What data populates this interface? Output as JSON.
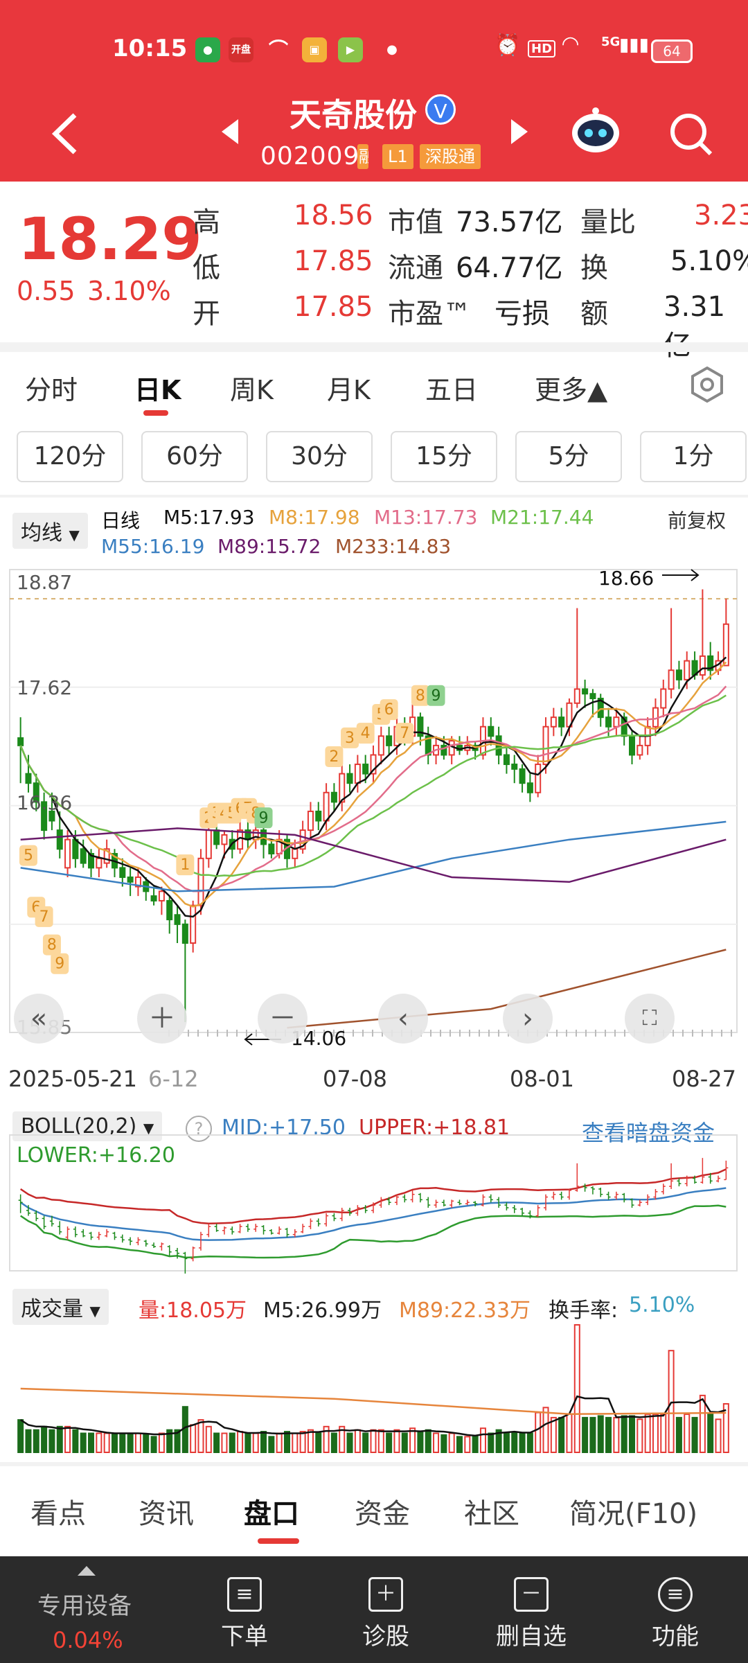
{
  "status": {
    "time": "10:15",
    "battery": "64",
    "app_badge": "开盘",
    "network": "5G",
    "hd": "HD"
  },
  "header": {
    "name": "天奇股份",
    "verify": "V",
    "code": "002009",
    "tags": [
      "L1",
      "深股通"
    ]
  },
  "quote": {
    "price": "18.29",
    "change": "0.55",
    "change_pct": "3.10%",
    "rows": [
      {
        "l1": "高",
        "v1": "18.56",
        "l2": "市值",
        "v2": "73.57亿",
        "l3": "量比",
        "v3": "3.23"
      },
      {
        "l1": "低",
        "v1": "17.85",
        "l2": "流通",
        "v2": "64.77亿",
        "l3": "换",
        "v3": "5.10%"
      },
      {
        "l1": "开",
        "v1": "17.85",
        "l2": "市盈™",
        "v2": "亏损",
        "l3": "额",
        "v3": "3.31亿"
      }
    ]
  },
  "tabs": [
    "分时",
    "日K",
    "周K",
    "月K",
    "五日",
    "更多▲"
  ],
  "intervals": [
    "120分",
    "60分",
    "30分",
    "15分",
    "5分",
    "1分"
  ],
  "ma_legend": {
    "selector": "均线",
    "kind": "日线",
    "items": [
      {
        "text": "M5:17.93",
        "color": "#111111"
      },
      {
        "text": "M8:17.98",
        "color": "#e6a23c"
      },
      {
        "text": "M13:17.73",
        "color": "#e26c8a"
      },
      {
        "text": "M21:17.44",
        "color": "#6cc04a"
      },
      {
        "text": "M55:16.19",
        "color": "#3a7fc1"
      },
      {
        "text": "M89:15.72",
        "color": "#6a1b6a"
      },
      {
        "text": "M233:14.83",
        "color": "#a0522d"
      }
    ],
    "adjust": "前复权"
  },
  "chart_data": [
    {
      "type": "candlestick",
      "y_ticks": [
        "18.87",
        "17.62",
        "16.36",
        "15.85"
      ],
      "ylim": [
        13.95,
        18.87
      ],
      "x_ticks": [
        "2025-05-21",
        "6-12",
        "07-08",
        "08-01",
        "08-27"
      ],
      "annotations": {
        "high": "18.66",
        "low": "14.06"
      },
      "td_marks": [
        "2",
        "3",
        "4",
        "5",
        "6",
        "7",
        "8",
        "9",
        "1",
        "2",
        "3",
        "4",
        "5",
        "6",
        "7",
        "8",
        "9",
        "5",
        "6",
        "7",
        "8",
        "9"
      ],
      "candles": [
        [
          17.08,
          17.0,
          17.3,
          16.6
        ],
        [
          16.7,
          16.6,
          16.9,
          16.5
        ],
        [
          16.6,
          16.4,
          16.7,
          16.3
        ],
        [
          16.4,
          16.1,
          16.5,
          16.0
        ],
        [
          16.3,
          16.2,
          16.5,
          16.1
        ],
        [
          16.1,
          15.9,
          16.3,
          15.8
        ],
        [
          15.7,
          16.0,
          16.1,
          15.6
        ],
        [
          16.0,
          15.8,
          16.1,
          15.7
        ],
        [
          15.9,
          15.75,
          16.0,
          15.7
        ],
        [
          15.85,
          15.7,
          15.9,
          15.6
        ],
        [
          15.7,
          15.8,
          15.9,
          15.6
        ],
        [
          15.75,
          15.9,
          16.0,
          15.7
        ],
        [
          15.85,
          15.7,
          15.9,
          15.6
        ],
        [
          15.7,
          15.6,
          15.8,
          15.5
        ],
        [
          15.6,
          15.55,
          15.7,
          15.4
        ],
        [
          15.5,
          15.6,
          15.7,
          15.4
        ],
        [
          15.55,
          15.45,
          15.6,
          15.35
        ],
        [
          15.4,
          15.35,
          15.5,
          15.3
        ],
        [
          15.35,
          15.45,
          15.5,
          15.2
        ],
        [
          15.35,
          15.15,
          15.4,
          15.0
        ],
        [
          15.2,
          15.1,
          15.3,
          14.9
        ],
        [
          15.1,
          14.9,
          15.15,
          14.06
        ],
        [
          14.9,
          15.3,
          15.35,
          14.8
        ],
        [
          15.3,
          15.8,
          15.9,
          15.2
        ],
        [
          15.8,
          16.1,
          16.2,
          15.7
        ],
        [
          16.1,
          15.95,
          16.2,
          15.9
        ],
        [
          15.95,
          16.05,
          16.1,
          15.8
        ],
        [
          16.0,
          15.9,
          16.1,
          15.8
        ],
        [
          15.9,
          16.1,
          16.2,
          15.85
        ],
        [
          16.1,
          16.0,
          16.2,
          15.9
        ],
        [
          16.0,
          16.1,
          16.2,
          15.9
        ],
        [
          16.1,
          15.95,
          16.15,
          15.8
        ],
        [
          15.95,
          15.85,
          16.0,
          15.8
        ],
        [
          15.85,
          16.0,
          16.1,
          15.8
        ],
        [
          16.0,
          15.8,
          16.05,
          15.7
        ],
        [
          15.8,
          15.9,
          16.0,
          15.7
        ],
        [
          15.9,
          16.1,
          16.2,
          15.85
        ],
        [
          16.1,
          16.3,
          16.4,
          16.0
        ],
        [
          16.3,
          16.2,
          16.4,
          16.1
        ],
        [
          16.2,
          16.5,
          16.6,
          16.1
        ],
        [
          16.5,
          16.4,
          16.6,
          16.3
        ],
        [
          16.4,
          16.7,
          16.8,
          16.3
        ],
        [
          16.7,
          16.6,
          16.8,
          16.5
        ],
        [
          16.6,
          16.8,
          16.9,
          16.5
        ],
        [
          16.8,
          16.7,
          16.9,
          16.6
        ],
        [
          16.7,
          16.9,
          17.0,
          16.6
        ],
        [
          16.9,
          17.1,
          17.2,
          16.8
        ],
        [
          17.1,
          17.0,
          17.2,
          16.9
        ],
        [
          17.0,
          17.2,
          17.3,
          16.9
        ],
        [
          17.2,
          17.1,
          17.3,
          17.0
        ],
        [
          17.1,
          17.3,
          17.45,
          17.0
        ],
        [
          17.3,
          17.1,
          17.35,
          17.0
        ],
        [
          17.1,
          16.9,
          17.2,
          16.8
        ],
        [
          16.9,
          17.0,
          17.1,
          16.8
        ],
        [
          17.0,
          16.9,
          17.1,
          16.85
        ],
        [
          16.9,
          17.05,
          17.1,
          16.8
        ],
        [
          17.0,
          16.95,
          17.1,
          16.9
        ],
        [
          16.95,
          17.0,
          17.1,
          16.9
        ],
        [
          17.0,
          16.95,
          17.05,
          16.85
        ],
        [
          16.9,
          17.2,
          17.3,
          16.85
        ],
        [
          17.2,
          17.1,
          17.3,
          17.0
        ],
        [
          17.1,
          16.9,
          17.2,
          16.8
        ],
        [
          16.9,
          16.8,
          17.0,
          16.7
        ],
        [
          16.8,
          16.75,
          16.9,
          16.6
        ],
        [
          16.75,
          16.6,
          16.8,
          16.5
        ],
        [
          16.6,
          16.5,
          16.7,
          16.4
        ],
        [
          16.5,
          16.8,
          16.9,
          16.45
        ],
        [
          16.8,
          17.2,
          17.3,
          16.7
        ],
        [
          17.2,
          17.3,
          17.4,
          17.1
        ],
        [
          17.3,
          17.2,
          17.4,
          17.1
        ],
        [
          17.2,
          17.45,
          17.5,
          17.1
        ],
        [
          17.45,
          17.6,
          18.46,
          17.4
        ],
        [
          17.6,
          17.55,
          17.7,
          17.4
        ],
        [
          17.55,
          17.5,
          17.6,
          17.3
        ],
        [
          17.5,
          17.3,
          17.55,
          17.2
        ],
        [
          17.3,
          17.2,
          17.4,
          17.1
        ],
        [
          17.2,
          17.3,
          17.4,
          17.1
        ],
        [
          17.3,
          17.1,
          17.35,
          17.0
        ],
        [
          17.1,
          16.9,
          17.15,
          16.8
        ],
        [
          16.9,
          17.0,
          17.1,
          16.85
        ],
        [
          17.0,
          17.2,
          17.3,
          16.9
        ],
        [
          17.2,
          17.4,
          17.5,
          17.1
        ],
        [
          17.4,
          17.6,
          17.7,
          17.3
        ],
        [
          17.6,
          17.8,
          18.46,
          17.5
        ],
        [
          17.8,
          17.7,
          17.9,
          17.6
        ],
        [
          17.7,
          17.9,
          18.0,
          17.6
        ],
        [
          17.9,
          17.75,
          18.0,
          17.7
        ],
        [
          17.75,
          17.95,
          18.66,
          17.7
        ],
        [
          17.95,
          17.8,
          18.1,
          17.7
        ],
        [
          17.8,
          17.9,
          18.0,
          17.75
        ],
        [
          17.85,
          18.29,
          18.56,
          17.85
        ]
      ]
    },
    {
      "type": "line",
      "indicator": "BOLL(20,2)",
      "mid": "MID:+17.50",
      "upper": "UPPER:+18.81",
      "lower": "LOWER:+16.20",
      "link": "查看暗盘资金"
    },
    {
      "type": "bar",
      "indicator": "成交量",
      "vol": "量:18.05万",
      "m5": "M5:26.99万",
      "m89": "M89:22.33万",
      "turnover_label": "换手率:",
      "turnover": "5.10%"
    }
  ],
  "bottom_tabs": [
    "看点",
    "资讯",
    "盘口",
    "资金",
    "社区",
    "简况(F10)"
  ],
  "bottom_nav": {
    "device_label": "专用设备",
    "device_change": "0.04%",
    "items": [
      "下单",
      "诊股",
      "删自选",
      "功能"
    ]
  }
}
